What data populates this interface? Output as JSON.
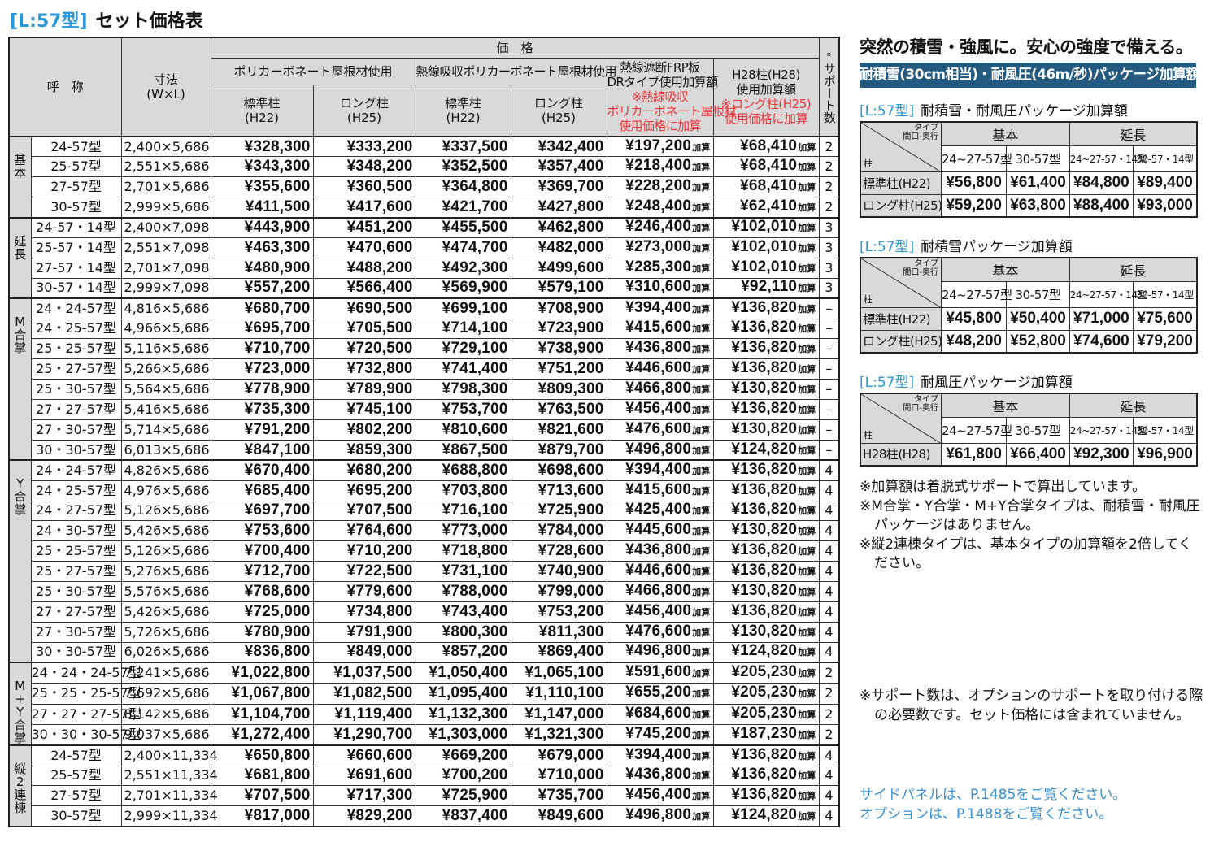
{
  "title": {
    "code": "[L:57型]",
    "text": "セット価格表"
  },
  "main": {
    "headers": {
      "name": "呼　称",
      "size": "寸法",
      "size_sub": "(W×L)",
      "price": "価　格",
      "poly": "ポリカーボネート屋根材使用",
      "heat_poly": "熱線吸収ポリカーボネート屋根材使用",
      "frp": "熱線遮断FRP板",
      "frp2": "DRタイプ使用加算額",
      "frp_note1": "※熱線吸収",
      "frp_note2": "ポリカーボネート屋根材",
      "frp_note3": "使用価格に加算",
      "h28": "H28柱(H28)",
      "h28_2": "使用加算額",
      "h28_note1": "※ロング柱(H25)",
      "h28_note2": "使用価格に加算",
      "std": "標準柱",
      "std_sub": "(H22)",
      "long": "ロング柱",
      "long_sub": "(H25)",
      "support": "サポート数",
      "support_mark": "※"
    },
    "add_suffix": "加算",
    "groups": [
      {
        "label": "基本",
        "rows": [
          [
            "24-57型",
            "2,400×5,686",
            "¥328,300",
            "¥333,200",
            "¥337,500",
            "¥342,400",
            "¥197,200",
            "¥68,410",
            "2"
          ],
          [
            "25-57型",
            "2,551×5,686",
            "¥343,300",
            "¥348,200",
            "¥352,500",
            "¥357,400",
            "¥218,400",
            "¥68,410",
            "2"
          ],
          [
            "27-57型",
            "2,701×5,686",
            "¥355,600",
            "¥360,500",
            "¥364,800",
            "¥369,700",
            "¥228,200",
            "¥68,410",
            "2"
          ],
          [
            "30-57型",
            "2,999×5,686",
            "¥411,500",
            "¥417,600",
            "¥421,700",
            "¥427,800",
            "¥248,400",
            "¥62,410",
            "2"
          ]
        ]
      },
      {
        "label": "延長",
        "rows": [
          [
            "24-57・14型",
            "2,400×7,098",
            "¥443,900",
            "¥451,200",
            "¥455,500",
            "¥462,800",
            "¥246,400",
            "¥102,010",
            "3"
          ],
          [
            "25-57・14型",
            "2,551×7,098",
            "¥463,300",
            "¥470,600",
            "¥474,700",
            "¥482,000",
            "¥273,000",
            "¥102,010",
            "3"
          ],
          [
            "27-57・14型",
            "2,701×7,098",
            "¥480,900",
            "¥488,200",
            "¥492,300",
            "¥499,600",
            "¥285,300",
            "¥102,010",
            "3"
          ],
          [
            "30-57・14型",
            "2,999×7,098",
            "¥557,200",
            "¥566,400",
            "¥569,900",
            "¥579,100",
            "¥310,600",
            "¥92,110",
            "3"
          ]
        ]
      },
      {
        "label": "M合掌",
        "rows": [
          [
            "24・24-57型",
            "4,816×5,686",
            "¥680,700",
            "¥690,500",
            "¥699,100",
            "¥708,900",
            "¥394,400",
            "¥136,820",
            "–"
          ],
          [
            "24・25-57型",
            "4,966×5,686",
            "¥695,700",
            "¥705,500",
            "¥714,100",
            "¥723,900",
            "¥415,600",
            "¥136,820",
            "–"
          ],
          [
            "25・25-57型",
            "5,116×5,686",
            "¥710,700",
            "¥720,500",
            "¥729,100",
            "¥738,900",
            "¥436,800",
            "¥136,820",
            "–"
          ],
          [
            "25・27-57型",
            "5,266×5,686",
            "¥723,000",
            "¥732,800",
            "¥741,400",
            "¥751,200",
            "¥446,600",
            "¥136,820",
            "–"
          ],
          [
            "25・30-57型",
            "5,564×5,686",
            "¥778,900",
            "¥789,900",
            "¥798,300",
            "¥809,300",
            "¥466,800",
            "¥130,820",
            "–"
          ],
          [
            "27・27-57型",
            "5,416×5,686",
            "¥735,300",
            "¥745,100",
            "¥753,700",
            "¥763,500",
            "¥456,400",
            "¥136,820",
            "–"
          ],
          [
            "27・30-57型",
            "5,714×5,686",
            "¥791,200",
            "¥802,200",
            "¥810,600",
            "¥821,600",
            "¥476,600",
            "¥130,820",
            "–"
          ],
          [
            "30・30-57型",
            "6,013×5,686",
            "¥847,100",
            "¥859,300",
            "¥867,500",
            "¥879,700",
            "¥496,800",
            "¥124,820",
            "–"
          ]
        ]
      },
      {
        "label": "Y合掌",
        "rows": [
          [
            "24・24-57型",
            "4,826×5,686",
            "¥670,400",
            "¥680,200",
            "¥688,800",
            "¥698,600",
            "¥394,400",
            "¥136,820",
            "4"
          ],
          [
            "24・25-57型",
            "4,976×5,686",
            "¥685,400",
            "¥695,200",
            "¥703,800",
            "¥713,600",
            "¥415,600",
            "¥136,820",
            "4"
          ],
          [
            "24・27-57型",
            "5,126×5,686",
            "¥697,700",
            "¥707,500",
            "¥716,100",
            "¥725,900",
            "¥425,400",
            "¥136,820",
            "4"
          ],
          [
            "24・30-57型",
            "5,426×5,686",
            "¥753,600",
            "¥764,600",
            "¥773,000",
            "¥784,000",
            "¥445,600",
            "¥130,820",
            "4"
          ],
          [
            "25・25-57型",
            "5,126×5,686",
            "¥700,400",
            "¥710,200",
            "¥718,800",
            "¥728,600",
            "¥436,800",
            "¥136,820",
            "4"
          ],
          [
            "25・27-57型",
            "5,276×5,686",
            "¥712,700",
            "¥722,500",
            "¥731,100",
            "¥740,900",
            "¥446,600",
            "¥136,820",
            "4"
          ],
          [
            "25・30-57型",
            "5,576×5,686",
            "¥768,600",
            "¥779,600",
            "¥788,000",
            "¥799,000",
            "¥466,800",
            "¥130,820",
            "4"
          ],
          [
            "27・27-57型",
            "5,426×5,686",
            "¥725,000",
            "¥734,800",
            "¥743,400",
            "¥753,200",
            "¥456,400",
            "¥136,820",
            "4"
          ],
          [
            "27・30-57型",
            "5,726×5,686",
            "¥780,900",
            "¥791,900",
            "¥800,300",
            "¥811,300",
            "¥476,600",
            "¥130,820",
            "4"
          ],
          [
            "30・30-57型",
            "6,026×5,686",
            "¥836,800",
            "¥849,000",
            "¥857,200",
            "¥869,400",
            "¥496,800",
            "¥124,820",
            "4"
          ]
        ]
      },
      {
        "label": "M+Y合掌",
        "rows": [
          [
            "24・24・24-57型",
            "7,241×5,686",
            "¥1,022,800",
            "¥1,037,500",
            "¥1,050,400",
            "¥1,065,100",
            "¥591,600",
            "¥205,230",
            "2"
          ],
          [
            "25・25・25-57型",
            "7,692×5,686",
            "¥1,067,800",
            "¥1,082,500",
            "¥1,095,400",
            "¥1,110,100",
            "¥655,200",
            "¥205,230",
            "2"
          ],
          [
            "27・27・27-57型",
            "8,142×5,686",
            "¥1,104,700",
            "¥1,119,400",
            "¥1,132,300",
            "¥1,147,000",
            "¥684,600",
            "¥205,230",
            "2"
          ],
          [
            "30・30・30-57型",
            "9,037×5,686",
            "¥1,272,400",
            "¥1,290,700",
            "¥1,303,000",
            "¥1,321,300",
            "¥745,200",
            "¥187,230",
            "2"
          ]
        ]
      },
      {
        "label": "縦2連棟",
        "rows": [
          [
            "24-57型",
            "2,400×11,334",
            "¥650,800",
            "¥660,600",
            "¥669,200",
            "¥679,000",
            "¥394,400",
            "¥136,820",
            "4"
          ],
          [
            "25-57型",
            "2,551×11,334",
            "¥681,800",
            "¥691,600",
            "¥700,200",
            "¥710,000",
            "¥436,800",
            "¥136,820",
            "4"
          ],
          [
            "27-57型",
            "2,701×11,334",
            "¥707,500",
            "¥717,300",
            "¥725,900",
            "¥735,700",
            "¥456,400",
            "¥136,820",
            "4"
          ],
          [
            "30-57型",
            "2,999×11,334",
            "¥817,000",
            "¥829,200",
            "¥837,400",
            "¥849,600",
            "¥496,800",
            "¥124,820",
            "4"
          ]
        ]
      }
    ]
  },
  "side": {
    "headline": "突然の積雪・強風に。安心の強度で備える。",
    "band": "耐積雪(30cm相当)・耐風圧(46m/秒)パッケージ加算額",
    "corner": {
      "top1": "タイプ",
      "top2": "間口-奥行",
      "bottom": "柱"
    },
    "basic": "基本",
    "ext": "延長",
    "cols": [
      "24~27-57型",
      "30-57型",
      "24~27-57・14型",
      "30-57・14型"
    ],
    "tables": [
      {
        "code": "[L:57型]",
        "title": "耐積雪・耐風圧パッケージ加算額",
        "rows": [
          {
            "label": "標準柱(H22)",
            "values": [
              "¥56,800",
              "¥61,400",
              "¥84,800",
              "¥89,400"
            ]
          },
          {
            "label": "ロング柱(H25)",
            "values": [
              "¥59,200",
              "¥63,800",
              "¥88,400",
              "¥93,000"
            ]
          }
        ]
      },
      {
        "code": "[L:57型]",
        "title": "耐積雪パッケージ加算額",
        "rows": [
          {
            "label": "標準柱(H22)",
            "values": [
              "¥45,800",
              "¥50,400",
              "¥71,000",
              "¥75,600"
            ]
          },
          {
            "label": "ロング柱(H25)",
            "values": [
              "¥48,200",
              "¥52,800",
              "¥74,600",
              "¥79,200"
            ]
          }
        ]
      },
      {
        "code": "[L:57型]",
        "title": "耐風圧パッケージ加算額",
        "rows": [
          {
            "label": "H28柱(H28)",
            "values": [
              "¥61,800",
              "¥66,400",
              "¥92,300",
              "¥96,900"
            ]
          }
        ]
      }
    ],
    "notes": [
      "※加算額は着脱式サポートで算出しています。",
      "※M合掌・Y合掌・M+Y合掌タイプは、耐積雪・耐風圧パッケージはありません。",
      "※縦2連棟タイプは、基本タイプの加算額を2倍してください。"
    ],
    "support_note": "※サポート数は、オプションのサポートを取り付ける際の必要数です。セット価格には含まれていません。",
    "links": [
      "サイドパネルは、P.1485をご覧ください。",
      "オプションは、P.1488をご覧ください。"
    ],
    "colors": {
      "code_blue": "#2a98d8",
      "band": "#245a80",
      "note_red": "#e8383d",
      "link_blue": "#3b8fd0",
      "header_gray": "#d9d9d9"
    }
  }
}
